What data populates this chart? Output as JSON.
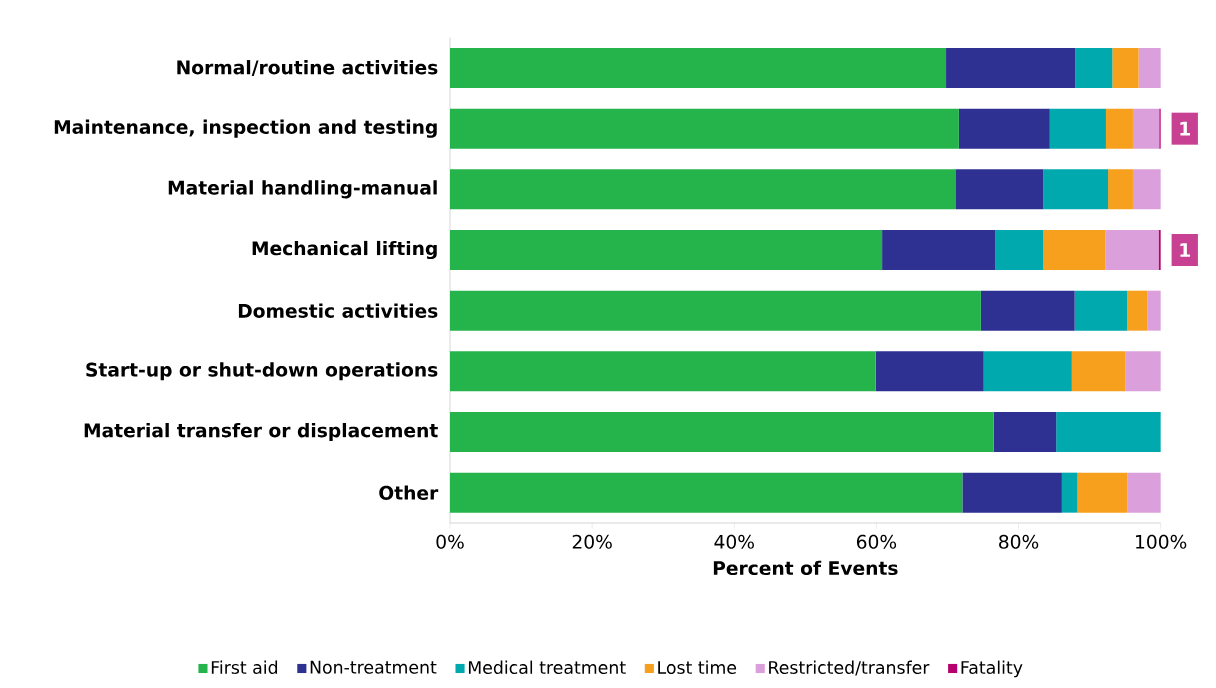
{
  "chart_data": {
    "type": "bar",
    "orientation": "horizontal",
    "stacked": true,
    "categories": [
      "Normal/routine activities",
      "Maintenance, inspection and testing",
      "Material handling-manual",
      "Mechanical lifting",
      "Domestic activities",
      "Start-up or shut-down operations",
      "Material transfer or displacement",
      "Other"
    ],
    "series": [
      {
        "name": "First aid",
        "color": "#25b34b",
        "values": [
          69.8,
          71.6,
          71.2,
          60.8,
          74.7,
          59.9,
          76.5,
          72.1
        ]
      },
      {
        "name": "Non-treatment",
        "color": "#2e3192",
        "values": [
          18.2,
          12.8,
          12.3,
          15.9,
          13.2,
          15.2,
          8.8,
          14.0
        ]
      },
      {
        "name": "Medical treatment",
        "color": "#00a9ad",
        "values": [
          5.2,
          7.9,
          9.1,
          6.8,
          7.4,
          12.4,
          14.7,
          2.2
        ]
      },
      {
        "name": "Lost time",
        "color": "#f7a01d",
        "values": [
          3.7,
          3.8,
          3.5,
          8.7,
          2.8,
          7.5,
          null,
          7.0
        ]
      },
      {
        "name": "Restricted/transfer",
        "color": "#dba0dc",
        "values": [
          3.1,
          3.7,
          3.9,
          7.5,
          1.9,
          5.0,
          null,
          4.7
        ]
      },
      {
        "name": "Fatality",
        "color": "#b5006e",
        "values": [
          null,
          0.2,
          null,
          0.3,
          null,
          null,
          null,
          null
        ]
      }
    ],
    "annotations": [
      {
        "text": "1",
        "x": 100,
        "y": "Maintenance, inspection and testing"
      },
      {
        "text": "1",
        "x": 100,
        "y": "Mechanical lifting"
      }
    ],
    "xlabel": "Percent of Events",
    "xlim": [
      0,
      100
    ],
    "xticks": [
      {
        "value": 0,
        "label": "0%"
      },
      {
        "value": 20,
        "label": "20%"
      },
      {
        "value": 40,
        "label": "40%"
      },
      {
        "value": 60,
        "label": "60%"
      },
      {
        "value": 80,
        "label": "80%"
      },
      {
        "value": 100,
        "label": "100%"
      }
    ],
    "grid": false,
    "legend": "bottom"
  }
}
